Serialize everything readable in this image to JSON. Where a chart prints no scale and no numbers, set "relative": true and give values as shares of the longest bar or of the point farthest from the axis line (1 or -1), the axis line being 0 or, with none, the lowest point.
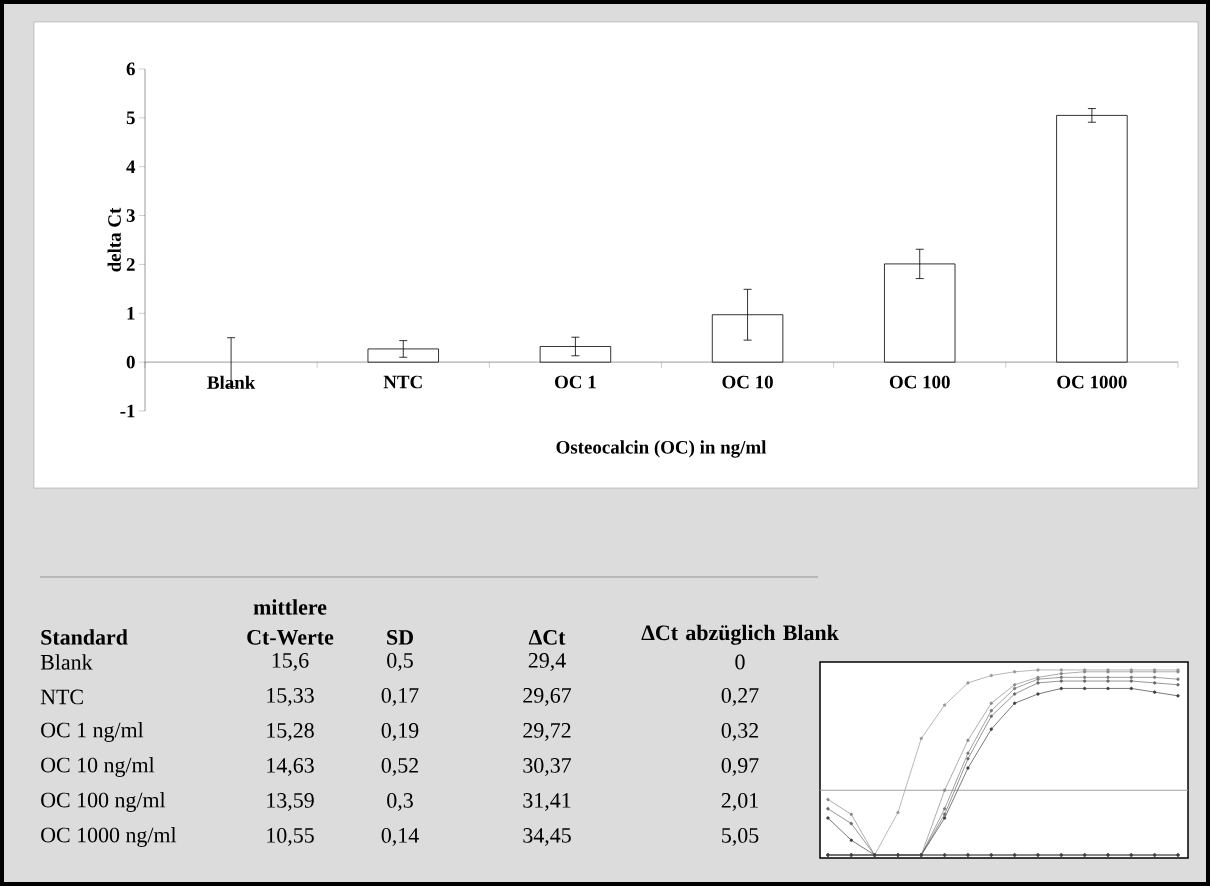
{
  "chart_data": [
    {
      "type": "bar",
      "categories": [
        "Blank",
        "NTC",
        "OC 1",
        "OC 10",
        "OC 100",
        "OC 1000"
      ],
      "values": [
        0,
        0.27,
        0.32,
        0.97,
        2.01,
        5.05
      ],
      "errors": [
        0.5,
        0.17,
        0.19,
        0.52,
        0.3,
        0.14
      ],
      "color": "#ffffff",
      "xlabel": "Osteocalcin (OC) in ng/ml",
      "ylabel": "delta Ct",
      "ylim": [
        -1,
        6
      ],
      "yticks": [
        -1,
        0,
        1,
        2,
        3,
        4,
        5,
        6
      ]
    },
    {
      "type": "other",
      "categories": [
        "Standard",
        "mittlere Ct-Werte",
        "SD",
        "ΔCt",
        "ΔCt abzüglich Blank"
      ],
      "cell_labels": [
        [
          "Blank",
          "15,6",
          "0,5",
          "29,4",
          "0"
        ],
        [
          "NTC",
          "15,33",
          "0,17",
          "29,67",
          "0,27"
        ],
        [
          "OC 1 ng/ml",
          "15,28",
          "0,19",
          "29,72",
          "0,32"
        ],
        [
          "OC 10 ng/ml",
          "14,63",
          "0,52",
          "30,37",
          "0,97"
        ],
        [
          "OC 100 ng/ml",
          "13,59",
          "0,3",
          "31,41",
          "2,01"
        ],
        [
          "OC 1000 ng/ml",
          "10,55",
          "0,14",
          "34,45",
          "5,05"
        ]
      ]
    },
    {
      "type": "line",
      "relative": true,
      "marker": "circle",
      "categories": [
        null,
        null,
        null,
        null,
        null,
        null,
        null,
        null,
        null,
        null,
        null,
        null,
        null,
        null,
        null,
        null
      ],
      "series": [
        {
          "color": "#9a9a9a",
          "values": [
            0,
            0,
            0,
            0.23,
            0.63,
            0.81,
            0.93,
            0.97,
            0.99,
            1.0,
            1.0,
            1.0,
            1.0,
            1.0,
            1.0,
            1.0
          ]
        },
        {
          "color": "#8a8a8a",
          "values": [
            0,
            0,
            0,
            0,
            0,
            0.35,
            0.62,
            0.82,
            0.92,
            0.96,
            0.98,
            0.99,
            0.99,
            0.99,
            0.99,
            0.99
          ]
        },
        {
          "color": "#7a7a7a",
          "values": [
            0,
            0,
            0,
            0,
            0,
            0.25,
            0.55,
            0.78,
            0.9,
            0.95,
            0.96,
            0.96,
            0.96,
            0.96,
            0.96,
            0.95
          ]
        },
        {
          "color": "#6a6a6a",
          "values": [
            0,
            0,
            0,
            0,
            0,
            0.22,
            0.52,
            0.75,
            0.87,
            0.93,
            0.94,
            0.94,
            0.94,
            0.94,
            0.93,
            0.92
          ]
        },
        {
          "color": "#404040",
          "values": [
            0,
            0,
            0,
            0,
            0,
            0.2,
            0.47,
            0.68,
            0.82,
            0.87,
            0.9,
            0.9,
            0.9,
            0.9,
            0.88,
            0.86
          ]
        },
        {
          "color": "#8a8a8a",
          "values": [
            0.3,
            0.22,
            0,
            0,
            0,
            0,
            0,
            0,
            0,
            0,
            0,
            0,
            0,
            0,
            0,
            0
          ]
        },
        {
          "color": "#6a6a6a",
          "values": [
            0.25,
            0.17,
            0,
            0,
            0,
            0,
            0,
            0,
            0,
            0,
            0,
            0,
            0,
            0,
            0,
            0
          ]
        },
        {
          "color": "#404040",
          "values": [
            0.2,
            0.08,
            0,
            0,
            0,
            0,
            0,
            0,
            0,
            0,
            0,
            0,
            0,
            0,
            0,
            0
          ]
        }
      ],
      "ref_lines": [
        {
          "axis": "y",
          "value": 0.35,
          "color": "#a0a0a0"
        }
      ]
    }
  ]
}
